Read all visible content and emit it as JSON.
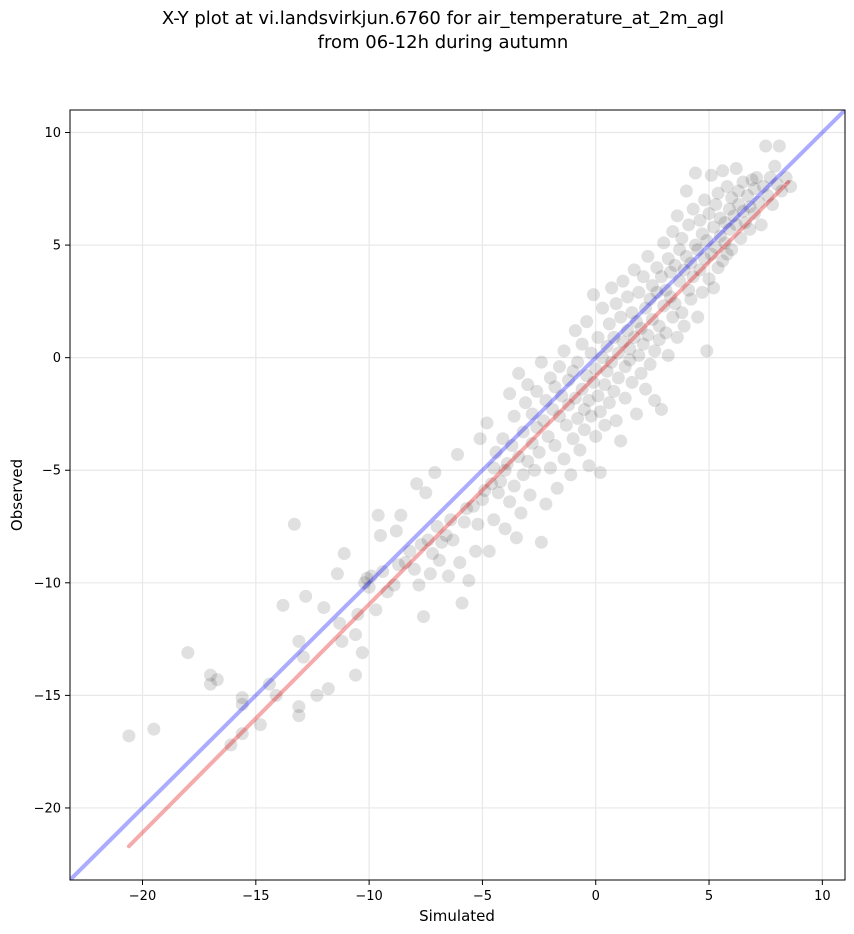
{
  "chart_data": {
    "type": "scatter",
    "title_line1": "X-Y plot at vi.landsvirkjun.6760 for air_temperature_at_2m_agl",
    "title_line2": "from 06-12h during autumn",
    "xlabel": "Simulated",
    "ylabel": "Observed",
    "xlim": [
      -23.2,
      11.0
    ],
    "ylim": [
      -23.2,
      11.0
    ],
    "xticks": [
      -20,
      -15,
      -10,
      -5,
      0,
      5,
      10
    ],
    "yticks": [
      -20,
      -15,
      -10,
      -5,
      0,
      5,
      10
    ],
    "xtick_labels": [
      "−20",
      "−15",
      "−10",
      "−5",
      "0",
      "5",
      "10"
    ],
    "ytick_labels": [
      "−20",
      "−15",
      "−10",
      "−5",
      "0",
      "5",
      "10"
    ],
    "grid": true,
    "colors": {
      "points": "#000000",
      "identity_line": "#0000ff",
      "fit_line": "#e00000"
    },
    "identity_line": {
      "x": [
        -23.2,
        11.0
      ],
      "y": [
        -23.2,
        11.0
      ]
    },
    "fit_line": {
      "x": [
        -20.6,
        8.5
      ],
      "y": [
        -21.7,
        7.8
      ]
    },
    "points": [
      [
        -20.6,
        -16.8
      ],
      [
        -19.5,
        -16.5
      ],
      [
        -18.0,
        -13.1
      ],
      [
        -17.0,
        -14.5
      ],
      [
        -17.0,
        -14.1
      ],
      [
        -16.7,
        -14.3
      ],
      [
        -16.1,
        -17.2
      ],
      [
        -15.6,
        -16.7
      ],
      [
        -15.6,
        -15.1
      ],
      [
        -15.6,
        -15.4
      ],
      [
        -14.8,
        -16.3
      ],
      [
        -14.4,
        -14.5
      ],
      [
        -14.1,
        -15.0
      ],
      [
        -13.8,
        -11.0
      ],
      [
        -13.3,
        -7.4
      ],
      [
        -13.1,
        -12.6
      ],
      [
        -13.1,
        -15.5
      ],
      [
        -13.1,
        -15.9
      ],
      [
        -12.9,
        -13.3
      ],
      [
        -12.8,
        -10.6
      ],
      [
        -12.3,
        -15.0
      ],
      [
        -12.0,
        -11.1
      ],
      [
        -11.8,
        -14.7
      ],
      [
        -11.4,
        -9.6
      ],
      [
        -11.3,
        -11.8
      ],
      [
        -11.2,
        -12.6
      ],
      [
        -11.1,
        -8.7
      ],
      [
        -10.6,
        -12.3
      ],
      [
        -10.6,
        -14.1
      ],
      [
        -10.5,
        -11.4
      ],
      [
        -10.3,
        -13.1
      ],
      [
        -10.2,
        -10.0
      ],
      [
        -10.1,
        -9.8
      ],
      [
        -10.0,
        -10.2
      ],
      [
        -9.9,
        -9.7
      ],
      [
        -9.7,
        -11.2
      ],
      [
        -9.6,
        -7.0
      ],
      [
        -9.5,
        -7.9
      ],
      [
        -9.4,
        -9.5
      ],
      [
        -9.2,
        -10.4
      ],
      [
        -8.9,
        -10.1
      ],
      [
        -8.8,
        -7.7
      ],
      [
        -8.7,
        -9.2
      ],
      [
        -8.6,
        -7.0
      ],
      [
        -8.4,
        -9.1
      ],
      [
        -8.2,
        -8.6
      ],
      [
        -8.0,
        -9.4
      ],
      [
        -7.9,
        -5.6
      ],
      [
        -7.8,
        -10.1
      ],
      [
        -7.7,
        -8.3
      ],
      [
        -7.6,
        -11.5
      ],
      [
        -7.5,
        -6.0
      ],
      [
        -7.4,
        -8.1
      ],
      [
        -7.3,
        -9.6
      ],
      [
        -7.2,
        -8.7
      ],
      [
        -7.1,
        -5.1
      ],
      [
        -7.0,
        -7.5
      ],
      [
        -6.9,
        -9.0
      ],
      [
        -6.8,
        -8.2
      ],
      [
        -6.6,
        -7.9
      ],
      [
        -6.5,
        -9.7
      ],
      [
        -6.4,
        -7.2
      ],
      [
        -6.3,
        -8.1
      ],
      [
        -6.1,
        -4.3
      ],
      [
        -6.0,
        -9.1
      ],
      [
        -5.9,
        -10.9
      ],
      [
        -5.8,
        -7.3
      ],
      [
        -5.7,
        -6.7
      ],
      [
        -5.6,
        -9.9
      ],
      [
        -5.4,
        -6.6
      ],
      [
        -5.3,
        -8.6
      ],
      [
        -5.2,
        -7.4
      ],
      [
        -5.1,
        -3.6
      ],
      [
        -5.0,
        -6.3
      ],
      [
        -4.9,
        -5.9
      ],
      [
        -4.8,
        -2.9
      ],
      [
        -4.7,
        -8.6
      ],
      [
        -4.6,
        -5.6
      ],
      [
        -4.5,
        -4.9
      ],
      [
        -4.5,
        -7.2
      ],
      [
        -4.4,
        -4.2
      ],
      [
        -4.3,
        -6.0
      ],
      [
        -4.2,
        -5.5
      ],
      [
        -4.1,
        -3.6
      ],
      [
        -4.0,
        -7.6
      ],
      [
        -4.0,
        -5.0
      ],
      [
        -3.9,
        -4.7
      ],
      [
        -3.8,
        -6.4
      ],
      [
        -3.8,
        -1.6
      ],
      [
        -3.7,
        -3.9
      ],
      [
        -3.6,
        -5.7
      ],
      [
        -3.6,
        -2.6
      ],
      [
        -3.5,
        -8.0
      ],
      [
        -3.4,
        -4.4
      ],
      [
        -3.4,
        -0.7
      ],
      [
        -3.3,
        -6.9
      ],
      [
        -3.2,
        -3.3
      ],
      [
        -3.2,
        -5.2
      ],
      [
        -3.1,
        -2.0
      ],
      [
        -3.0,
        -4.6
      ],
      [
        -3.0,
        -1.2
      ],
      [
        -2.9,
        -6.1
      ],
      [
        -2.8,
        -3.8
      ],
      [
        -2.8,
        -2.5
      ],
      [
        -2.7,
        -5.0
      ],
      [
        -2.6,
        -1.5
      ],
      [
        -2.6,
        -3.1
      ],
      [
        -2.5,
        -4.2
      ],
      [
        -2.4,
        -8.2
      ],
      [
        -2.4,
        -0.2
      ],
      [
        -2.3,
        -2.8
      ],
      [
        -2.2,
        -6.5
      ],
      [
        -2.2,
        -1.9
      ],
      [
        -2.1,
        -3.5
      ],
      [
        -2.0,
        -4.9
      ],
      [
        -2.0,
        -0.9
      ],
      [
        -1.9,
        -2.3
      ],
      [
        -1.8,
        -1.3
      ],
      [
        -1.8,
        -3.9
      ],
      [
        -1.7,
        -5.8
      ],
      [
        -1.6,
        -0.4
      ],
      [
        -1.6,
        -2.6
      ],
      [
        -1.5,
        -1.7
      ],
      [
        -1.4,
        -4.5
      ],
      [
        -1.4,
        0.3
      ],
      [
        -1.3,
        -3.0
      ],
      [
        -1.2,
        -1.0
      ],
      [
        -1.2,
        -2.1
      ],
      [
        -1.1,
        -5.2
      ],
      [
        -1.0,
        -0.6
      ],
      [
        -1.0,
        -3.6
      ],
      [
        -0.9,
        1.2
      ],
      [
        -0.9,
        -1.8
      ],
      [
        -0.8,
        -2.7
      ],
      [
        -0.8,
        -0.2
      ],
      [
        -0.7,
        -4.1
      ],
      [
        -0.6,
        -1.4
      ],
      [
        -0.6,
        0.6
      ],
      [
        -0.5,
        -2.3
      ],
      [
        -0.5,
        -3.2
      ],
      [
        -0.4,
        -0.8
      ],
      [
        -0.4,
        1.6
      ],
      [
        -0.3,
        -1.9
      ],
      [
        -0.3,
        -4.8
      ],
      [
        -0.2,
        0.2
      ],
      [
        -0.2,
        -2.6
      ],
      [
        -0.1,
        -1.1
      ],
      [
        -0.1,
        2.8
      ],
      [
        0.0,
        -0.5
      ],
      [
        0.0,
        -3.5
      ],
      [
        0.1,
        0.9
      ],
      [
        0.1,
        -1.7
      ],
      [
        0.2,
        -2.4
      ],
      [
        0.2,
        -5.1
      ],
      [
        0.3,
        0.0
      ],
      [
        0.3,
        2.2
      ],
      [
        0.4,
        -1.2
      ],
      [
        0.4,
        -3.0
      ],
      [
        0.5,
        0.5
      ],
      [
        0.5,
        -0.6
      ],
      [
        0.6,
        1.5
      ],
      [
        0.6,
        -2.0
      ],
      [
        0.7,
        3.1
      ],
      [
        0.7,
        -0.2
      ],
      [
        0.8,
        -1.5
      ],
      [
        0.8,
        0.9
      ],
      [
        0.9,
        2.4
      ],
      [
        0.9,
        -2.8
      ],
      [
        1.0,
        0.2
      ],
      [
        1.0,
        -0.9
      ],
      [
        1.1,
        1.8
      ],
      [
        1.1,
        -3.7
      ],
      [
        1.2,
        0.7
      ],
      [
        1.2,
        3.4
      ],
      [
        1.3,
        -0.4
      ],
      [
        1.3,
        -1.8
      ],
      [
        1.4,
        1.2
      ],
      [
        1.4,
        2.7
      ],
      [
        1.5,
        -0.1
      ],
      [
        1.5,
        0.4
      ],
      [
        1.6,
        2.0
      ],
      [
        1.6,
        -1.1
      ],
      [
        1.7,
        3.9
      ],
      [
        1.7,
        0.9
      ],
      [
        1.8,
        -2.5
      ],
      [
        1.8,
        1.6
      ],
      [
        1.9,
        0.1
      ],
      [
        1.9,
        2.9
      ],
      [
        2.0,
        1.3
      ],
      [
        2.0,
        -0.7
      ],
      [
        2.1,
        3.6
      ],
      [
        2.1,
        0.6
      ],
      [
        2.2,
        2.2
      ],
      [
        2.2,
        -1.4
      ],
      [
        2.3,
        1.0
      ],
      [
        2.3,
        4.5
      ],
      [
        2.4,
        -0.3
      ],
      [
        2.4,
        2.6
      ],
      [
        2.5,
        1.7
      ],
      [
        2.5,
        3.2
      ],
      [
        2.6,
        0.3
      ],
      [
        2.6,
        -1.9
      ],
      [
        2.7,
        2.9
      ],
      [
        2.7,
        4.0
      ],
      [
        2.8,
        1.4
      ],
      [
        2.8,
        0.8
      ],
      [
        2.9,
        3.6
      ],
      [
        2.9,
        -2.3
      ],
      [
        3.0,
        2.3
      ],
      [
        3.0,
        5.1
      ],
      [
        3.1,
        1.1
      ],
      [
        3.1,
        3.0
      ],
      [
        3.2,
        4.4
      ],
      [
        3.2,
        0.1
      ],
      [
        3.3,
        2.7
      ],
      [
        3.3,
        3.8
      ],
      [
        3.4,
        1.8
      ],
      [
        3.4,
        5.6
      ],
      [
        3.5,
        4.1
      ],
      [
        3.5,
        2.4
      ],
      [
        3.6,
        6.3
      ],
      [
        3.6,
        0.9
      ],
      [
        3.7,
        3.4
      ],
      [
        3.7,
        4.8
      ],
      [
        3.8,
        2.0
      ],
      [
        3.8,
        5.3
      ],
      [
        3.9,
        3.9
      ],
      [
        3.9,
        1.4
      ],
      [
        4.0,
        4.5
      ],
      [
        4.0,
        7.4
      ],
      [
        4.1,
        3.0
      ],
      [
        4.1,
        5.9
      ],
      [
        4.2,
        2.6
      ],
      [
        4.2,
        4.2
      ],
      [
        4.3,
        6.6
      ],
      [
        4.3,
        3.6
      ],
      [
        4.4,
        5.0
      ],
      [
        4.4,
        8.2
      ],
      [
        4.5,
        4.8
      ],
      [
        4.5,
        1.8
      ],
      [
        4.6,
        3.9
      ],
      [
        4.6,
        6.1
      ],
      [
        4.7,
        5.5
      ],
      [
        4.7,
        2.9
      ],
      [
        4.8,
        4.4
      ],
      [
        4.8,
        7.0
      ],
      [
        4.9,
        0.3
      ],
      [
        4.9,
        5.2
      ],
      [
        5.0,
        3.5
      ],
      [
        5.0,
        6.4
      ],
      [
        5.1,
        4.6
      ],
      [
        5.1,
        8.1
      ],
      [
        5.2,
        5.8
      ],
      [
        5.2,
        3.1
      ],
      [
        5.3,
        4.9
      ],
      [
        5.3,
        6.8
      ],
      [
        5.4,
        4.0
      ],
      [
        5.4,
        7.3
      ],
      [
        5.5,
        5.4
      ],
      [
        5.5,
        6.2
      ],
      [
        5.6,
        4.3
      ],
      [
        5.6,
        8.3
      ],
      [
        5.7,
        6.0
      ],
      [
        5.7,
        5.1
      ],
      [
        5.8,
        7.6
      ],
      [
        5.8,
        4.6
      ],
      [
        5.9,
        6.6
      ],
      [
        5.9,
        5.7
      ],
      [
        6.0,
        7.1
      ],
      [
        6.0,
        4.8
      ],
      [
        6.1,
        6.3
      ],
      [
        6.2,
        8.4
      ],
      [
        6.2,
        5.9
      ],
      [
        6.3,
        7.4
      ],
      [
        6.3,
        6.8
      ],
      [
        6.4,
        5.3
      ],
      [
        6.5,
        6.5
      ],
      [
        6.5,
        7.8
      ],
      [
        6.6,
        6.0
      ],
      [
        6.7,
        7.2
      ],
      [
        6.8,
        6.7
      ],
      [
        6.8,
        5.7
      ],
      [
        6.9,
        7.9
      ],
      [
        7.0,
        6.4
      ],
      [
        7.0,
        7.5
      ],
      [
        7.1,
        8.0
      ],
      [
        7.2,
        6.9
      ],
      [
        7.3,
        5.9
      ],
      [
        7.4,
        7.6
      ],
      [
        7.5,
        9.4
      ],
      [
        7.6,
        7.2
      ],
      [
        7.7,
        8.0
      ],
      [
        7.8,
        6.8
      ],
      [
        7.9,
        8.5
      ],
      [
        8.0,
        7.7
      ],
      [
        8.1,
        9.4
      ],
      [
        8.2,
        7.4
      ],
      [
        8.4,
        8.0
      ],
      [
        8.6,
        7.6
      ]
    ]
  }
}
